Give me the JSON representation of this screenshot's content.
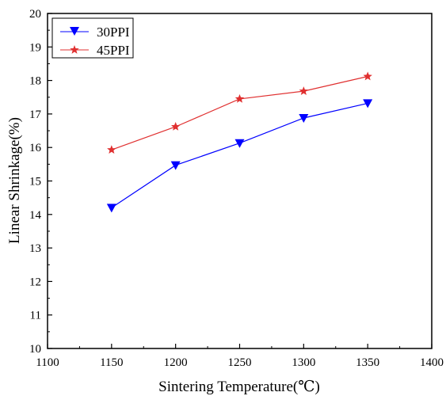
{
  "chart_data": {
    "type": "line",
    "title": "",
    "xlabel": "Sintering Temperature(℃)",
    "ylabel": "Linear Shrinkage(%)",
    "xlim": [
      1100,
      1400
    ],
    "ylim": [
      10,
      20
    ],
    "x_ticks": [
      "1100",
      "1150",
      "1200",
      "1250",
      "1300",
      "1350",
      "1400"
    ],
    "y_ticks": [
      "10",
      "11",
      "12",
      "13",
      "14",
      "15",
      "16",
      "17",
      "18",
      "19",
      "20"
    ],
    "x": [
      1150,
      1200,
      1250,
      1300,
      1350
    ],
    "series": [
      {
        "name": "30PPI",
        "values": [
          14.2,
          15.47,
          16.13,
          16.88,
          17.32
        ],
        "color": "#0000ff",
        "marker": "down-triangle"
      },
      {
        "name": "45PPI",
        "values": [
          15.93,
          16.62,
          17.45,
          17.68,
          18.12
        ],
        "color": "#e03030",
        "marker": "star"
      }
    ],
    "legend_position": "top-left",
    "grid": false
  }
}
